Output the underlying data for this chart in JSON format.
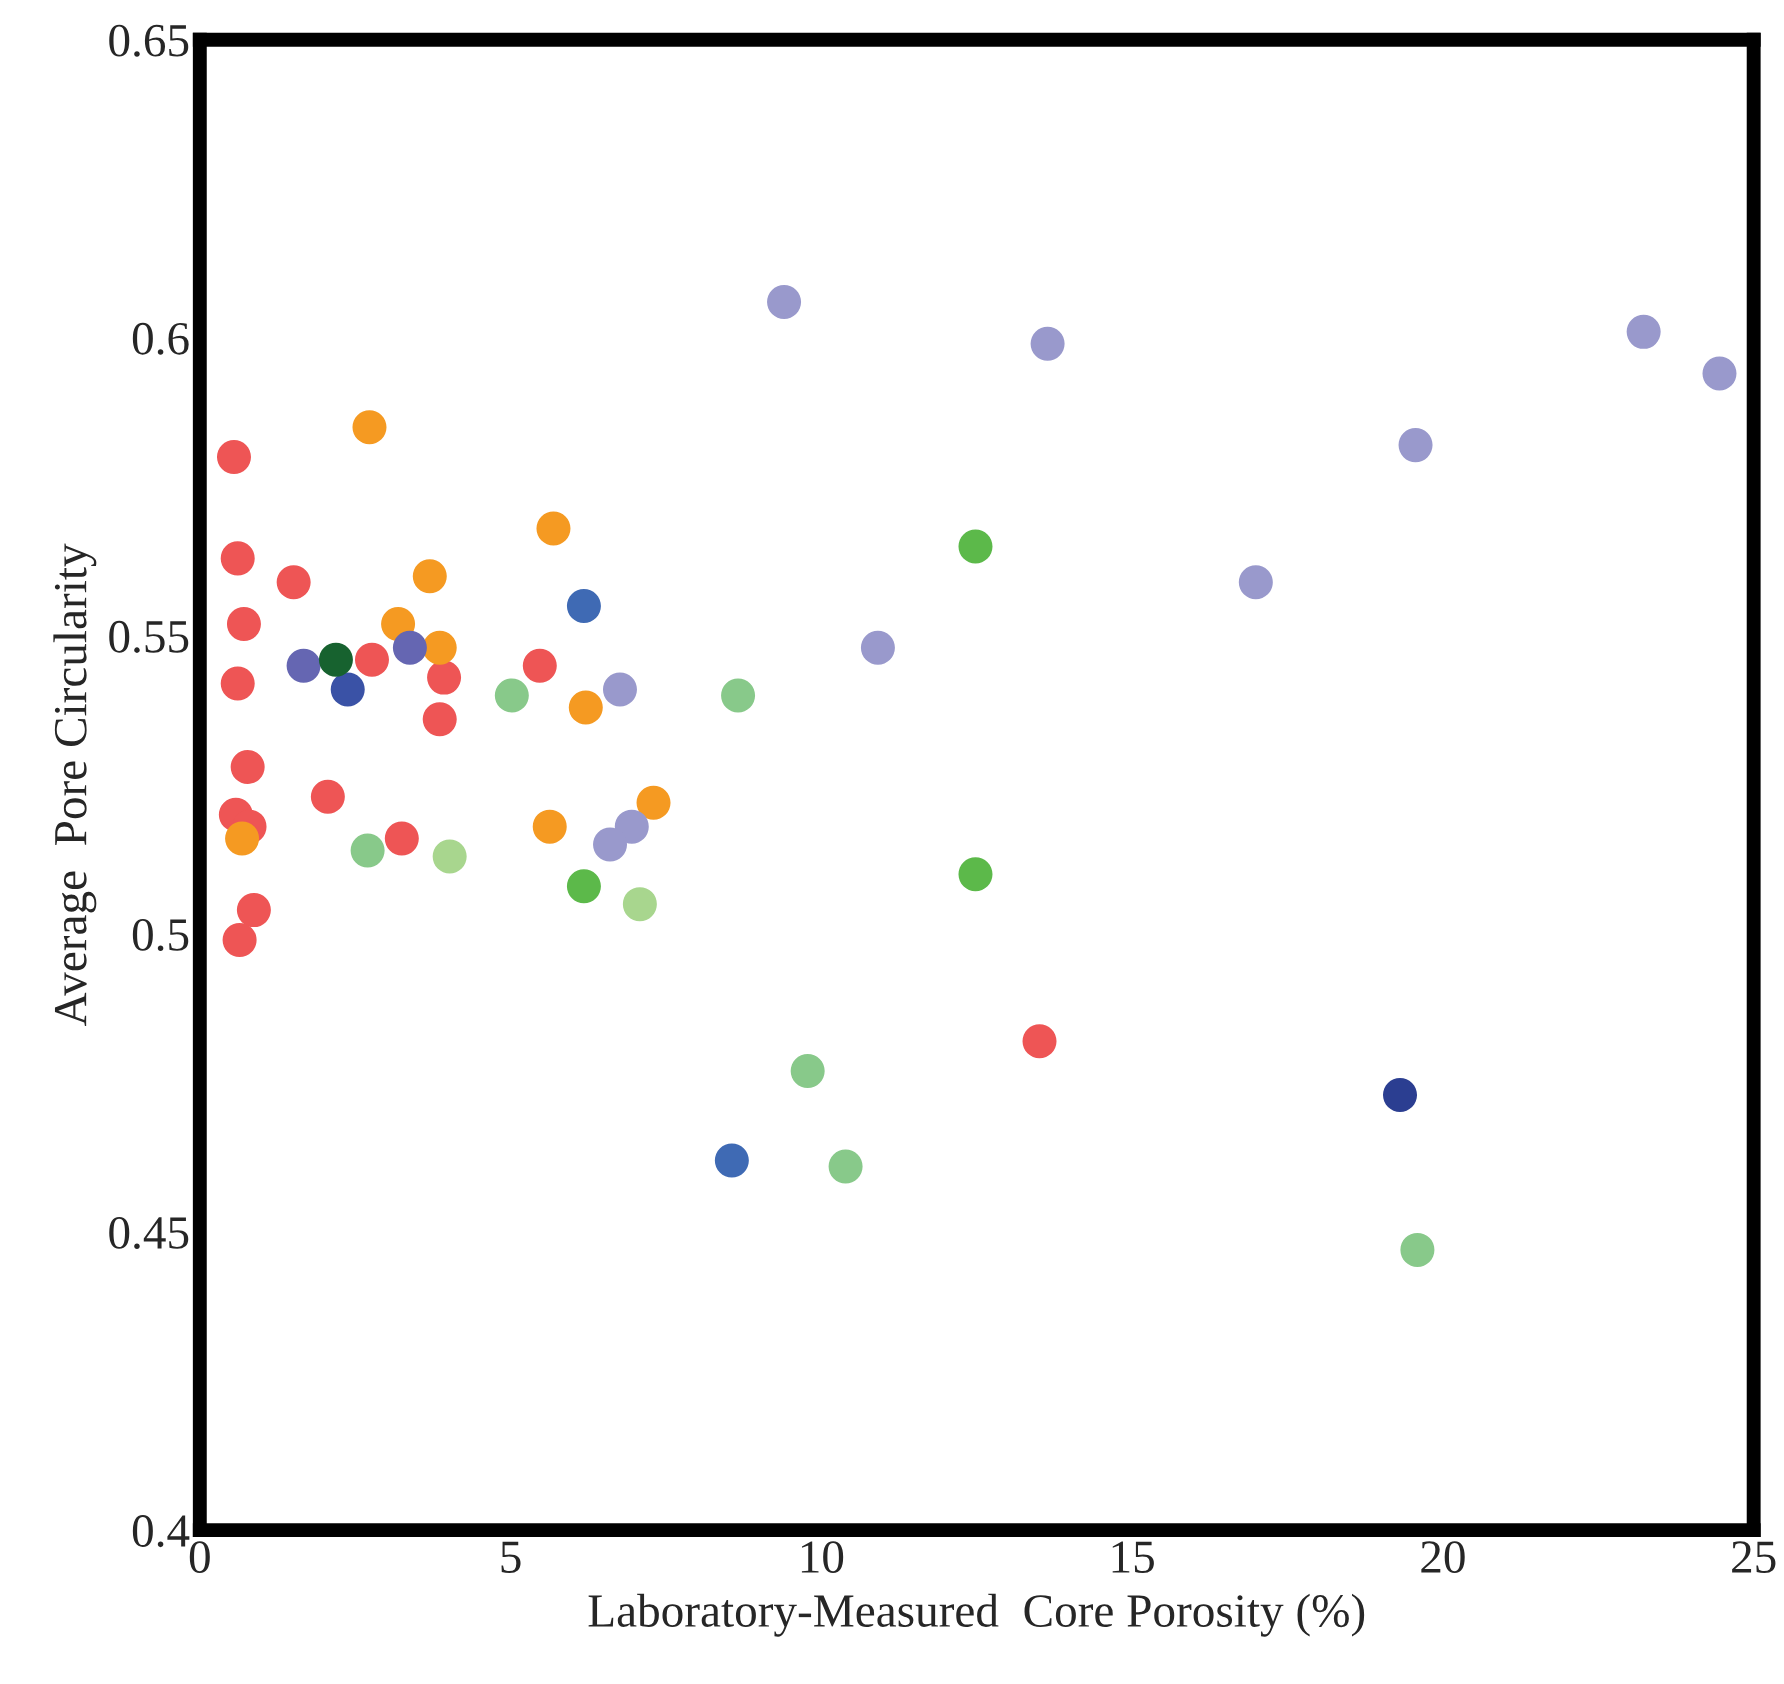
{
  "chart_data": {
    "type": "scatter",
    "xlabel": "Laboratory-Measured  Core Porosity (%)",
    "ylabel": "Average  Pore Circularity",
    "xlim": [
      0,
      25
    ],
    "xticks": [
      0,
      5,
      10,
      15,
      20,
      25
    ],
    "ylim": [
      0.4,
      0.65
    ],
    "yticks": [
      {
        "value": 0.4,
        "label": "0.4"
      },
      {
        "value": 0.45,
        "label": "0.45"
      },
      {
        "value": 0.5,
        "label": "0.5"
      },
      {
        "value": 0.55,
        "label": "0.55"
      },
      {
        "value": 0.6,
        "label": "0.6"
      },
      {
        "value": 0.65,
        "label": "0.65"
      }
    ],
    "grid": false,
    "legend": false,
    "marker": "circle",
    "series": [
      {
        "color": "#ee5555",
        "x": [
          0.55,
          0.61,
          1.51,
          0.71,
          0.61,
          2.77,
          3.93,
          3.86,
          5.47,
          0.77,
          2.06,
          0.58,
          0.8,
          3.25,
          0.87,
          0.64,
          13.51
        ],
        "values": [
          0.58,
          0.563,
          0.559,
          0.552,
          0.542,
          0.546,
          0.543,
          0.536,
          0.545,
          0.528,
          0.523,
          0.52,
          0.518,
          0.516,
          0.504,
          0.499,
          0.482
        ]
      },
      {
        "color": "#f59a22",
        "x": [
          2.73,
          5.69,
          3.7,
          3.19,
          3.86,
          6.21,
          5.63,
          0.68,
          7.3
        ],
        "values": [
          0.585,
          0.568,
          0.56,
          0.552,
          0.548,
          0.538,
          0.518,
          0.516,
          0.522
        ]
      },
      {
        "color": "#9999cc",
        "x": [
          6.76,
          6.95,
          6.6,
          9.4,
          13.64,
          16.99,
          10.91,
          23.23,
          24.45,
          19.56
        ],
        "values": [
          0.541,
          0.518,
          0.515,
          0.606,
          0.599,
          0.559,
          0.548,
          0.601,
          0.594,
          0.582
        ]
      },
      {
        "color": "#3f6ab4",
        "x": [
          6.18,
          8.56
        ],
        "values": [
          0.555,
          0.462
        ]
      },
      {
        "color": "#3a52a6",
        "x": [
          2.38
        ],
        "values": [
          0.541
        ]
      },
      {
        "color": "#2b3e91",
        "x": [
          19.31
        ],
        "values": [
          0.473
        ]
      },
      {
        "color": "#6566b2",
        "x": [
          1.67,
          3.38
        ],
        "values": [
          0.545,
          0.548
        ]
      },
      {
        "color": "#17622f",
        "x": [
          2.19
        ],
        "values": [
          0.546
        ]
      },
      {
        "color": "#5cb94a",
        "x": [
          12.48,
          6.18,
          12.48
        ],
        "values": [
          0.565,
          0.508,
          0.51
        ]
      },
      {
        "color": "#88c98a",
        "x": [
          5.02,
          2.7,
          8.66,
          9.78,
          10.39,
          19.59
        ],
        "values": [
          0.54,
          0.514,
          0.54,
          0.477,
          0.461,
          0.447
        ]
      },
      {
        "color": "#a8d68e",
        "x": [
          4.02,
          7.08
        ],
        "values": [
          0.513,
          0.505
        ]
      }
    ]
  }
}
